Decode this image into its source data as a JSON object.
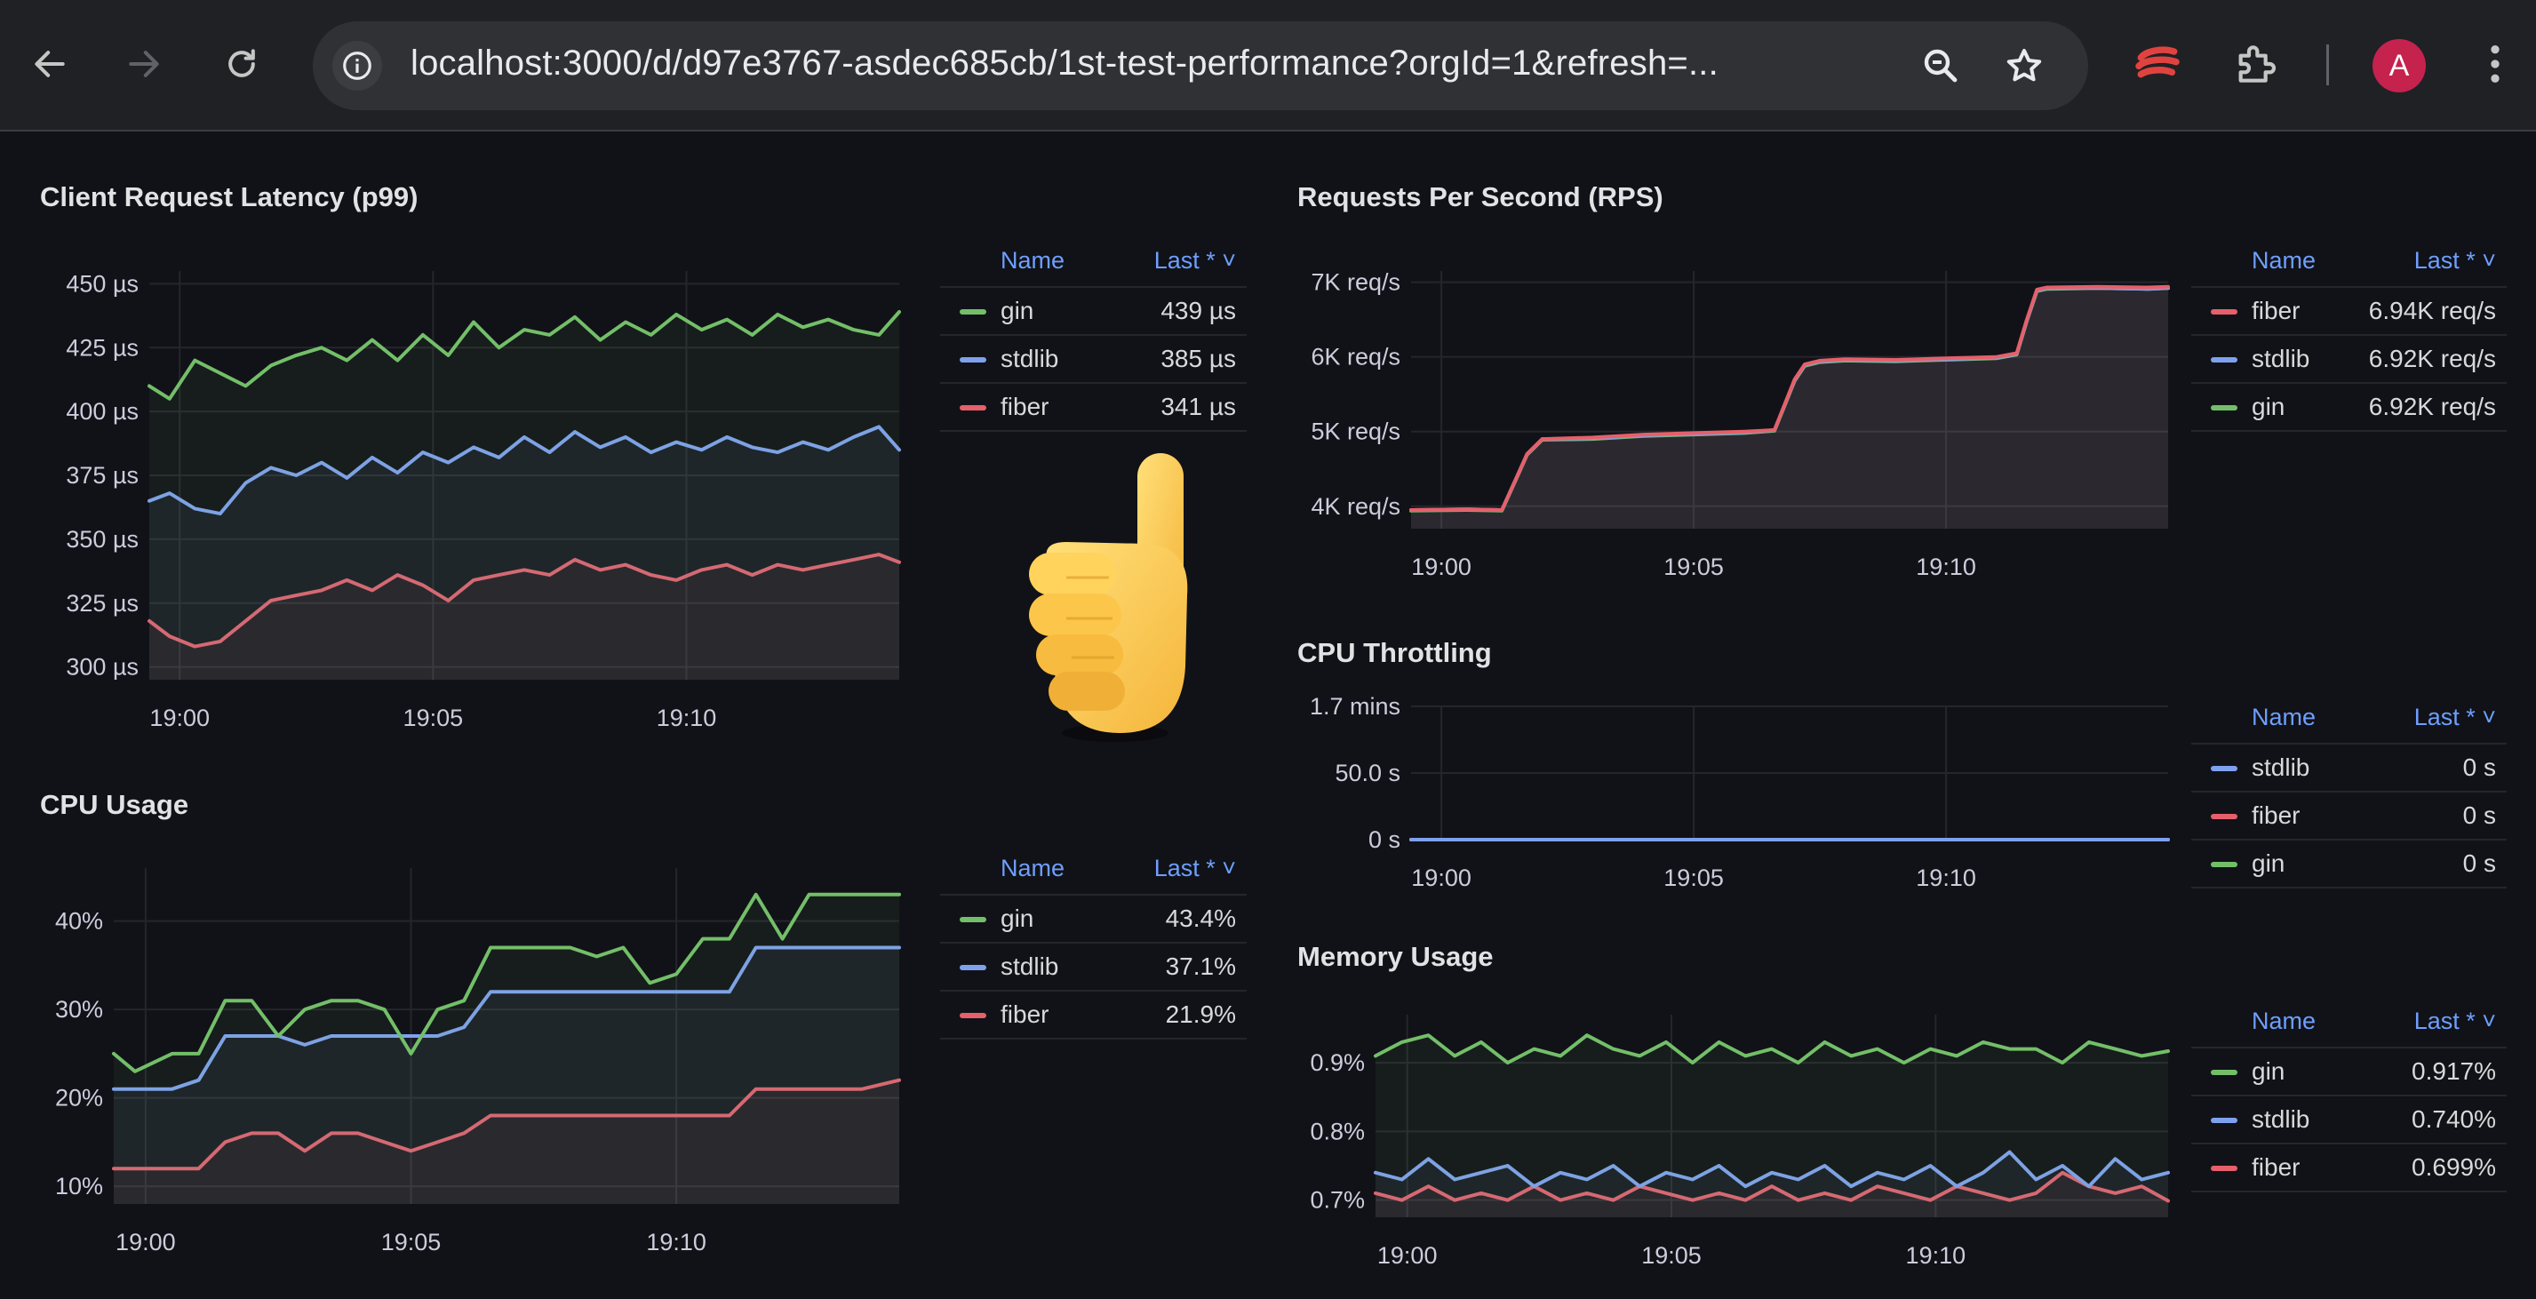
{
  "browser": {
    "url": "localhost:3000/d/d97e3767-asdec685cb/1st-test-performance?orgId=1&refresh=...",
    "avatar_letter": "A",
    "icons": [
      "back-arrow-icon",
      "forward-arrow-icon",
      "reload-icon",
      "info-icon",
      "zoom-icon",
      "star-icon",
      "extension-app-icon",
      "puzzle-icon",
      "kebab-menu-icon"
    ]
  },
  "colors": {
    "gin": "#73bf69",
    "stdlib": "#7ea1ee",
    "fiber": "#e5606b",
    "background": "#111217",
    "accent": "#6e9fff"
  },
  "legend_header": {
    "name": "Name",
    "last": "Last * ˅"
  },
  "panels": {
    "latency": {
      "title": "Client Request Latency (p99)",
      "legend": [
        {
          "name": "gin",
          "value": "439 µs"
        },
        {
          "name": "stdlib",
          "value": "385 µs"
        },
        {
          "name": "fiber",
          "value": "341 µs"
        }
      ]
    },
    "rps": {
      "title": "Requests Per Second (RPS)",
      "legend": [
        {
          "name": "fiber",
          "value": "6.94K req/s"
        },
        {
          "name": "stdlib",
          "value": "6.92K req/s"
        },
        {
          "name": "gin",
          "value": "6.92K req/s"
        }
      ]
    },
    "cpu_usage": {
      "title": "CPU Usage",
      "legend": [
        {
          "name": "gin",
          "value": "43.4%"
        },
        {
          "name": "stdlib",
          "value": "37.1%"
        },
        {
          "name": "fiber",
          "value": "21.9%"
        }
      ]
    },
    "cpu_throttling": {
      "title": "CPU Throttling",
      "legend": [
        {
          "name": "stdlib",
          "value": "0 s"
        },
        {
          "name": "fiber",
          "value": "0 s"
        },
        {
          "name": "gin",
          "value": "0 s"
        }
      ]
    },
    "memory": {
      "title": "Memory Usage",
      "legend": [
        {
          "name": "gin",
          "value": "0.917%"
        },
        {
          "name": "stdlib",
          "value": "0.740%"
        },
        {
          "name": "fiber",
          "value": "0.699%"
        }
      ]
    }
  },
  "chart_data": [
    {
      "id": "latency",
      "type": "line",
      "title": "Client Request Latency (p99)",
      "x_ticks": [
        "19:00",
        "19:05",
        "19:10"
      ],
      "x_tick_minutes": [
        0,
        5,
        10
      ],
      "xlim": [
        -0.6,
        14.2
      ],
      "y_ticks": [
        "300 µs",
        "325 µs",
        "350 µs",
        "375 µs",
        "400 µs",
        "425 µs",
        "450 µs"
      ],
      "y_tick_values": [
        300,
        325,
        350,
        375,
        400,
        425,
        450
      ],
      "ylim": [
        295,
        455
      ],
      "x": [
        -0.6,
        -0.2,
        0.3,
        0.8,
        1.3,
        1.8,
        2.3,
        2.8,
        3.3,
        3.8,
        4.3,
        4.8,
        5.3,
        5.8,
        6.3,
        6.8,
        7.3,
        7.8,
        8.3,
        8.8,
        9.3,
        9.8,
        10.3,
        10.8,
        11.3,
        11.8,
        12.3,
        12.8,
        13.3,
        13.8,
        14.2
      ],
      "series": [
        {
          "name": "gin",
          "values": [
            410,
            405,
            420,
            415,
            410,
            418,
            422,
            425,
            420,
            428,
            420,
            430,
            422,
            435,
            425,
            432,
            430,
            437,
            428,
            435,
            430,
            438,
            432,
            436,
            430,
            438,
            433,
            436,
            432,
            430,
            439
          ]
        },
        {
          "name": "stdlib",
          "values": [
            365,
            368,
            362,
            360,
            372,
            378,
            375,
            380,
            374,
            382,
            376,
            384,
            380,
            386,
            382,
            390,
            384,
            392,
            386,
            390,
            384,
            388,
            385,
            390,
            386,
            384,
            388,
            385,
            390,
            394,
            385
          ]
        },
        {
          "name": "fiber",
          "values": [
            318,
            312,
            308,
            310,
            318,
            326,
            328,
            330,
            334,
            330,
            336,
            332,
            326,
            334,
            336,
            338,
            336,
            342,
            338,
            340,
            336,
            334,
            338,
            340,
            336,
            340,
            338,
            340,
            342,
            344,
            341
          ]
        }
      ]
    },
    {
      "id": "rps",
      "type": "line",
      "title": "Requests Per Second (RPS)",
      "x_ticks": [
        "19:00",
        "19:05",
        "19:10"
      ],
      "x_tick_minutes": [
        0,
        5,
        10
      ],
      "xlim": [
        -0.6,
        14.4
      ],
      "y_ticks": [
        "4K req/s",
        "5K req/s",
        "6K req/s",
        "7K req/s"
      ],
      "y_tick_values": [
        4000,
        5000,
        6000,
        7000
      ],
      "ylim": [
        3700,
        7150
      ],
      "x": [
        -0.6,
        0.5,
        1.2,
        1.5,
        1.7,
        2.0,
        3.0,
        4.0,
        5.0,
        6.0,
        6.6,
        7.0,
        7.2,
        7.5,
        8.0,
        9.0,
        10.0,
        11.0,
        11.4,
        11.6,
        11.8,
        12.0,
        13.0,
        14.0,
        14.4
      ],
      "series": [
        {
          "name": "fiber",
          "values": [
            3950,
            3960,
            3950,
            4400,
            4700,
            4900,
            4920,
            4960,
            4980,
            5000,
            5020,
            5700,
            5900,
            5950,
            5970,
            5960,
            5980,
            6000,
            6050,
            6500,
            6900,
            6930,
            6940,
            6930,
            6940
          ]
        },
        {
          "name": "stdlib",
          "values": [
            3950,
            3960,
            3950,
            4400,
            4700,
            4900,
            4910,
            4950,
            4970,
            4990,
            5020,
            5690,
            5890,
            5940,
            5960,
            5950,
            5970,
            5990,
            6040,
            6490,
            6890,
            6920,
            6920,
            6910,
            6920
          ]
        },
        {
          "name": "gin",
          "values": [
            3940,
            3950,
            3940,
            4390,
            4690,
            4890,
            4900,
            4940,
            4960,
            4980,
            5010,
            5680,
            5880,
            5930,
            5950,
            5940,
            5960,
            5980,
            6030,
            6480,
            6880,
            6910,
            6920,
            6910,
            6920
          ]
        }
      ]
    },
    {
      "id": "cpu_usage",
      "type": "line",
      "title": "CPU Usage",
      "x_ticks": [
        "19:00",
        "19:05",
        "19:10"
      ],
      "x_tick_minutes": [
        0,
        5,
        10
      ],
      "xlim": [
        -0.6,
        14.2
      ],
      "y_ticks": [
        "10%",
        "20%",
        "30%",
        "40%"
      ],
      "y_tick_values": [
        10,
        20,
        30,
        40
      ],
      "ylim": [
        8,
        46
      ],
      "x": [
        -0.6,
        -0.2,
        0.5,
        1.0,
        1.5,
        2.0,
        2.5,
        3.0,
        3.5,
        4.0,
        4.5,
        5.0,
        5.5,
        6.0,
        6.5,
        7.0,
        7.5,
        8.0,
        8.5,
        9.0,
        9.5,
        10.0,
        10.5,
        11.0,
        11.5,
        12.0,
        12.5,
        13.0,
        13.5,
        14.2
      ],
      "series": [
        {
          "name": "gin",
          "values": [
            25,
            23,
            25,
            25,
            31,
            31,
            27,
            30,
            31,
            31,
            30,
            25,
            30,
            31,
            37,
            37,
            37,
            37,
            36,
            37,
            33,
            34,
            38,
            38,
            43,
            38,
            43,
            43,
            43,
            43
          ]
        },
        {
          "name": "stdlib",
          "values": [
            21,
            21,
            21,
            22,
            27,
            27,
            27,
            26,
            27,
            27,
            27,
            27,
            27,
            28,
            32,
            32,
            32,
            32,
            32,
            32,
            32,
            32,
            32,
            32,
            37,
            37,
            37,
            37,
            37,
            37
          ]
        },
        {
          "name": "fiber",
          "values": [
            12,
            12,
            12,
            12,
            15,
            16,
            16,
            14,
            16,
            16,
            15,
            14,
            15,
            16,
            18,
            18,
            18,
            18,
            18,
            18,
            18,
            18,
            18,
            18,
            21,
            21,
            21,
            21,
            21,
            22
          ]
        }
      ]
    },
    {
      "id": "cpu_throttling",
      "type": "line",
      "title": "CPU Throttling",
      "x_ticks": [
        "19:00",
        "19:05",
        "19:10"
      ],
      "x_tick_minutes": [
        0,
        5,
        10
      ],
      "xlim": [
        -0.6,
        14.4
      ],
      "y_ticks": [
        "0 s",
        "50.0 s",
        "1.7 mins"
      ],
      "y_tick_values": [
        0,
        50,
        100
      ],
      "ylim": [
        0,
        100
      ],
      "x": [
        -0.6,
        14.4
      ],
      "series": [
        {
          "name": "stdlib",
          "values": [
            0,
            0
          ]
        },
        {
          "name": "fiber",
          "values": [
            0,
            0
          ]
        },
        {
          "name": "gin",
          "values": [
            0,
            0
          ]
        }
      ]
    },
    {
      "id": "memory",
      "type": "line",
      "title": "Memory Usage",
      "x_ticks": [
        "19:00",
        "19:05",
        "19:10"
      ],
      "x_tick_minutes": [
        0,
        5,
        10
      ],
      "xlim": [
        -0.6,
        14.4
      ],
      "y_ticks": [
        "0.7%",
        "0.8%",
        "0.9%"
      ],
      "y_tick_values": [
        0.7,
        0.8,
        0.9
      ],
      "ylim": [
        0.675,
        0.97
      ],
      "x": [
        -0.6,
        -0.1,
        0.4,
        0.9,
        1.4,
        1.9,
        2.4,
        2.9,
        3.4,
        3.9,
        4.4,
        4.9,
        5.4,
        5.9,
        6.4,
        6.9,
        7.4,
        7.9,
        8.4,
        8.9,
        9.4,
        9.9,
        10.4,
        10.9,
        11.4,
        11.9,
        12.4,
        12.9,
        13.4,
        13.9,
        14.4
      ],
      "series": [
        {
          "name": "gin",
          "values": [
            0.91,
            0.93,
            0.94,
            0.91,
            0.93,
            0.9,
            0.92,
            0.91,
            0.94,
            0.92,
            0.91,
            0.93,
            0.9,
            0.93,
            0.91,
            0.92,
            0.9,
            0.93,
            0.91,
            0.92,
            0.9,
            0.92,
            0.91,
            0.93,
            0.92,
            0.92,
            0.9,
            0.93,
            0.92,
            0.91,
            0.917
          ]
        },
        {
          "name": "stdlib",
          "values": [
            0.74,
            0.73,
            0.76,
            0.73,
            0.74,
            0.75,
            0.72,
            0.74,
            0.73,
            0.75,
            0.72,
            0.74,
            0.73,
            0.75,
            0.72,
            0.74,
            0.73,
            0.75,
            0.72,
            0.74,
            0.73,
            0.75,
            0.72,
            0.74,
            0.77,
            0.73,
            0.75,
            0.72,
            0.76,
            0.73,
            0.74
          ]
        },
        {
          "name": "fiber",
          "values": [
            0.71,
            0.7,
            0.72,
            0.7,
            0.71,
            0.7,
            0.72,
            0.7,
            0.71,
            0.7,
            0.72,
            0.71,
            0.7,
            0.71,
            0.7,
            0.72,
            0.7,
            0.71,
            0.7,
            0.72,
            0.71,
            0.7,
            0.72,
            0.71,
            0.7,
            0.71,
            0.74,
            0.72,
            0.71,
            0.72,
            0.699
          ]
        }
      ]
    }
  ]
}
